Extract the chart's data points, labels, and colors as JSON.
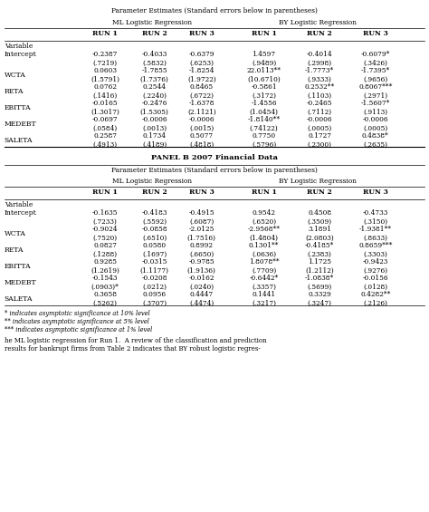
{
  "panel_a_title": "Parameter Estimates (Standard errors below in parentheses)",
  "panel_a_subtitle_ml": "ML Logistic Regression",
  "panel_a_subtitle_by": "BY Logistic Regression",
  "panel_b_header": "PANEL B 2007 Financial Data",
  "col_headers": [
    "RUN 1",
    "RUN 2",
    "RUN 3",
    "RUN 1",
    "RUN 2",
    "RUN 3"
  ],
  "row_labels": [
    "Variable\nIntercept",
    "WCTA",
    "RETA",
    "EBITTA",
    "MEDEBT",
    "SALETA"
  ],
  "panel_a_data": [
    [
      "-0.2387",
      "-0.4033",
      "-0.6379",
      "1.4597",
      "-0.4014",
      "-0.6079*"
    ],
    [
      "(.7219)",
      "(.5832)",
      "(.6253)",
      "(.9489)",
      "(.2998)",
      "(.3426)"
    ],
    [
      "0.0603",
      "-1.7855",
      "-1.8254",
      "22.0113**",
      "-1.7773*",
      "-1.7395*"
    ],
    [
      "(1.5791)",
      "(1.7376)",
      "(1.9722)",
      "(10.6710)",
      "(.9333)",
      "(.9656)"
    ],
    [
      "0.0762",
      "0.2544",
      "0.8465",
      "-0.5861",
      "0.2532**",
      "0.8067***"
    ],
    [
      "(.1416)",
      "(.2240)",
      "(.6722)",
      "(.3172)",
      "(.1103)",
      "(.2971)"
    ],
    [
      "-0.0165",
      "-0.2476",
      "-1.6378",
      "-1.4556",
      "-0.2465",
      "-1.5607*"
    ],
    [
      "(1.3017)",
      "(1.5305)",
      "(2.1121)",
      "(1.0454)",
      "(.7112)",
      "(.9113)"
    ],
    [
      "-0.0697",
      "-0.0006",
      "-0.0006",
      "-1.8140**",
      "-0.0006",
      "-0.0006"
    ],
    [
      "(.0584)",
      "(.0013)",
      "(.0015)",
      "(.74122)",
      "(.0005)",
      "(.0005)"
    ],
    [
      "0.2587",
      "0.1734",
      "0.5077",
      "0.7750",
      "0.1727",
      "0.4838*"
    ],
    [
      "(.4913)",
      "(.4189)",
      "(.4818)",
      "(.5796)",
      "(.2300)",
      "(.2635)"
    ]
  ],
  "panel_b_data": [
    [
      "-0.1635",
      "-0.4183",
      "-0.4915",
      "0.9542",
      "0.4508",
      "-0.4733"
    ],
    [
      "(.7233)",
      "(.5592)",
      "(.6087)",
      "(.6520)",
      "(.3509)",
      "(.3150)"
    ],
    [
      "-0.9024",
      "-0.0858",
      "-2.0125",
      "-2.9568**",
      "3.1891",
      "-1.9381**"
    ],
    [
      "(.7520)",
      "(.6510)",
      "(1.7516)",
      "(1.4804)",
      "(2.0803)",
      "(.8633)"
    ],
    [
      "0.0827",
      "0.0580",
      "0.8992",
      "0.1301**",
      "-0.4185*",
      "0.8659***"
    ],
    [
      "(.1288)",
      "(.1697)",
      "(.6650)",
      "(.0636)",
      "(.2383)",
      "(.3303)"
    ],
    [
      "0.9285",
      "-0.0315",
      "-0.9785",
      "1.8078**",
      "1.1725",
      "-0.9423"
    ],
    [
      "(1.2619)",
      "(1.1177)",
      "(1.9136)",
      "(.7709)",
      "(1.2112)",
      "(.9276)"
    ],
    [
      "-0.1543",
      "-0.0208",
      "-0.0162",
      "-0.6442*",
      "-1.0838*",
      "-0.0156"
    ],
    [
      "(.0903)*",
      "(.0212)",
      "(.0240)",
      "(.3357)",
      "(.5699)",
      "(.0128)"
    ],
    [
      "0.3658",
      "0.0956",
      "0.4447",
      "0.1441",
      "0.3329",
      "0.4282**"
    ],
    [
      "(.5262)",
      "(.3707)",
      "(.4474)",
      "(.3217)",
      "(.3247)",
      "(.2126)"
    ]
  ],
  "footnotes": [
    "* indicates asymptotic significance at 10% level",
    "** indicates asymptotic significance at 5% level",
    "*** indicates asymptotic significance at 1% level"
  ],
  "bottom_text": "he ML logistic regression for Run 1.  A review of the classification and prediction\nresults for bankrupt firms from Table 2 indicates that BY robust logistic regres-"
}
